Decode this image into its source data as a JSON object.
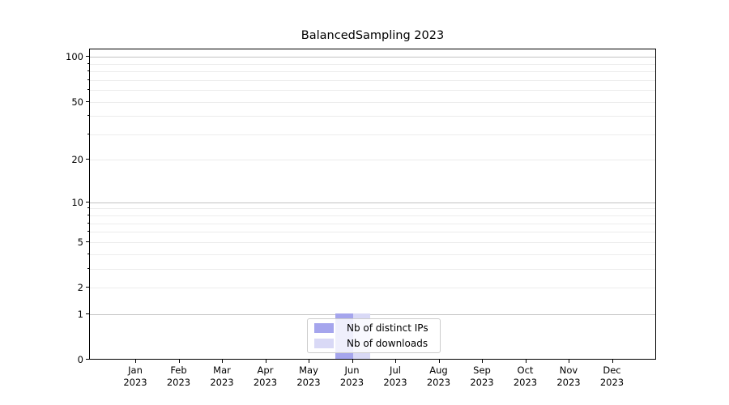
{
  "chart_data": {
    "type": "bar",
    "title": "BalancedSampling 2023",
    "x": {
      "categories": [
        "Jan",
        "Feb",
        "Mar",
        "Apr",
        "May",
        "Jun",
        "Jul",
        "Aug",
        "Sep",
        "Oct",
        "Nov",
        "Dec"
      ],
      "year": "2023"
    },
    "series": [
      {
        "name": "Nb of distinct IPs",
        "color": "#a5a5ed",
        "values": [
          0,
          0,
          0,
          0,
          0,
          1,
          0,
          0,
          0,
          0,
          0,
          0
        ]
      },
      {
        "name": "Nb of downloads",
        "color": "#d9d9f6",
        "values": [
          0,
          0,
          0,
          0,
          0,
          1,
          0,
          0,
          0,
          0,
          0,
          0
        ]
      }
    ],
    "y_axis": {
      "scale": "log1p",
      "labeled_ticks": [
        0,
        1,
        2,
        5,
        10,
        20,
        50,
        100
      ],
      "major_gridlines": [
        1,
        10,
        100
      ],
      "minor_gridlines": [
        2,
        3,
        4,
        5,
        6,
        7,
        8,
        9,
        20,
        30,
        40,
        50,
        60,
        70,
        80,
        90
      ],
      "top_value": 113.5,
      "range": [
        0,
        113.5
      ]
    },
    "legend": {
      "position": "lower center"
    },
    "grid": true,
    "colors": {
      "major_grid": "#c3c3c3",
      "minor_grid": "#ececec",
      "axis": "#000000",
      "background": "#ffffff"
    }
  }
}
